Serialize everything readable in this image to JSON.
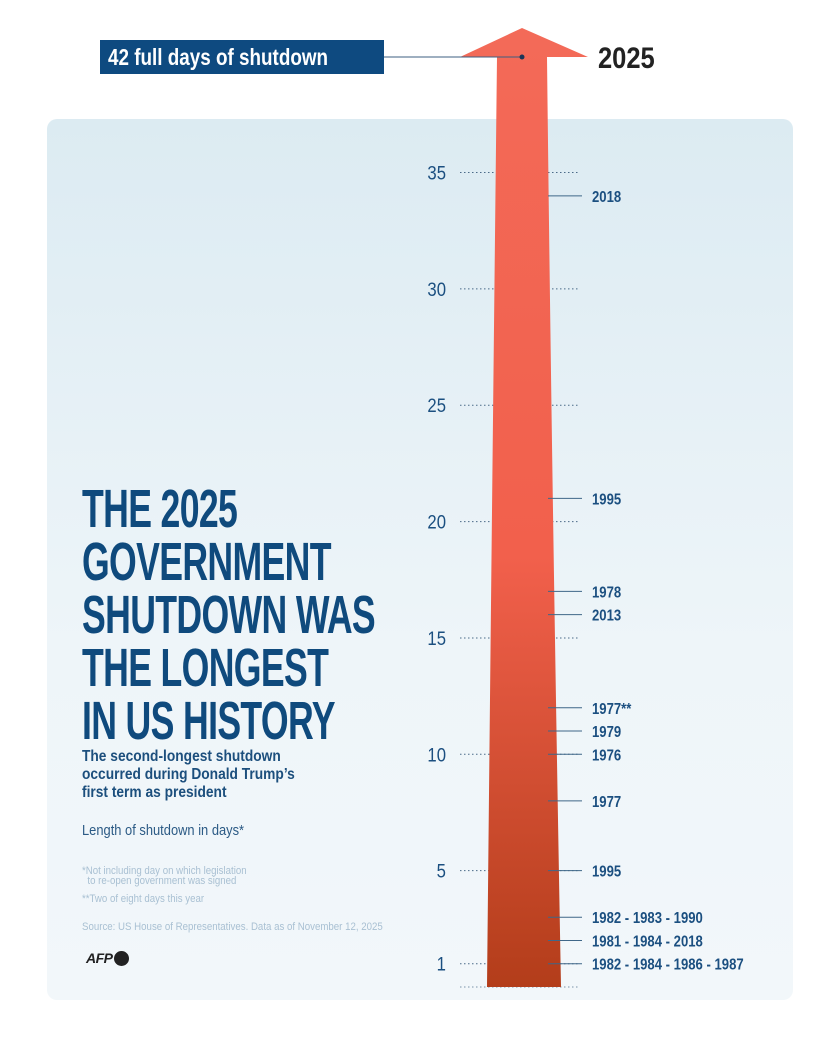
{
  "callout": {
    "label": "42 full days of shutdown",
    "year": "2025"
  },
  "title": [
    "THE 2025",
    "GOVERNMENT",
    "SHUTDOWN WAS",
    "THE LONGEST",
    "IN US HISTORY"
  ],
  "subtitle": [
    "The second-longest shutdown",
    "occurred during Donald Trump’s",
    "first term as president"
  ],
  "unit_label": "Length of shutdown in days*",
  "notes": {
    "note1": "*Not including day on which legislation\n  to re-open government was signed",
    "note2": "**Two of eight days this year",
    "source": "Source: US House of Representatives. Data as of November 12, 2025"
  },
  "logo": "AFP",
  "colors": {
    "arrow_top": "#f36a58",
    "arrow_bottom": "#b33d1a",
    "text": "#1b4f80",
    "callout_bg": "#0e4a80"
  },
  "chart_data": {
    "type": "bar",
    "ylabel": "Length of shutdown in days*",
    "ylim": [
      0,
      42
    ],
    "yticks": [
      1,
      5,
      10,
      15,
      20,
      25,
      30,
      35
    ],
    "grid": true,
    "max_value": 42,
    "max_label": "2025",
    "points": [
      {
        "value": 34,
        "label": "2018"
      },
      {
        "value": 21,
        "label": "1995"
      },
      {
        "value": 17,
        "label": "1978"
      },
      {
        "value": 16,
        "label": "2013"
      },
      {
        "value": 12,
        "label": "1977**"
      },
      {
        "value": 11,
        "label": "1979"
      },
      {
        "value": 10,
        "label": "1976"
      },
      {
        "value": 8,
        "label": "1977"
      },
      {
        "value": 5,
        "label": "1995"
      },
      {
        "value": 3,
        "label": "1982 - 1983 - 1990"
      },
      {
        "value": 2,
        "label": "1981 - 1984 - 2018"
      },
      {
        "value": 1,
        "label": "1982 - 1984 - 1986 - 1987"
      }
    ]
  }
}
